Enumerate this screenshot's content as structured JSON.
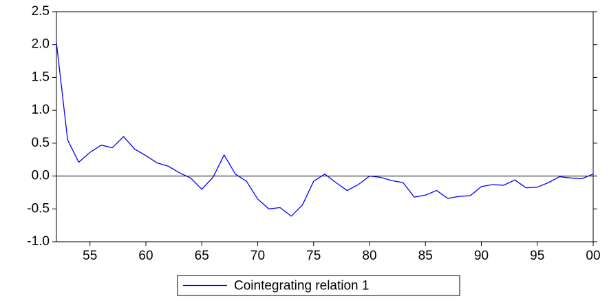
{
  "chart_data": {
    "type": "line",
    "categories": [
      null,
      null,
      null,
      "55",
      null,
      null,
      null,
      null,
      "60",
      null,
      null,
      null,
      null,
      "65",
      null,
      null,
      null,
      null,
      "70",
      null,
      null,
      null,
      null,
      "75",
      null,
      null,
      null,
      null,
      "80",
      null,
      null,
      null,
      null,
      "85",
      null,
      null,
      null,
      null,
      "90",
      null,
      null,
      null,
      null,
      "95",
      null,
      null,
      null,
      null,
      "00"
    ],
    "series": [
      {
        "name": "Cointegrating relation 1",
        "color": "#0000ff",
        "values": [
          2.03,
          0.55,
          0.21,
          0.36,
          0.47,
          0.43,
          0.6,
          0.41,
          0.31,
          0.2,
          0.15,
          0.05,
          -0.03,
          -0.2,
          -0.02,
          0.32,
          0.03,
          -0.08,
          -0.35,
          -0.5,
          -0.48,
          -0.61,
          -0.44,
          -0.08,
          0.03,
          -0.1,
          -0.22,
          -0.13,
          0.0,
          -0.02,
          -0.07,
          -0.1,
          -0.32,
          -0.29,
          -0.22,
          -0.34,
          -0.31,
          -0.3,
          -0.16,
          -0.13,
          -0.14,
          -0.06,
          -0.18,
          -0.17,
          -0.1,
          -0.01,
          -0.03,
          -0.04,
          0.03
        ]
      }
    ],
    "ylim": [
      -1.0,
      2.5
    ],
    "yticks": [
      {
        "value": -1.0,
        "label": "-1.0"
      },
      -0.5,
      {
        "value": 0,
        "label": "0.0"
      },
      0.5,
      {
        "value": 1.0,
        "label": "1.0"
      },
      1.5,
      {
        "value": 2.0,
        "label": "2.0"
      },
      2.5
    ],
    "zero_line": true,
    "legend": "bottom"
  }
}
